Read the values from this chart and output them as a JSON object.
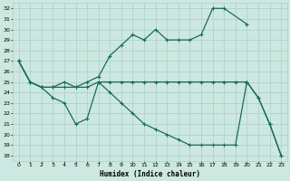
{
  "xlabel": "Humidex (Indice chaleur)",
  "bg_color": "#cce8e0",
  "grid_color": "#aacfc8",
  "line_color": "#1a6b5a",
  "xlim": [
    -0.5,
    23.5
  ],
  "ylim": [
    17.5,
    32.5
  ],
  "yticks": [
    18,
    19,
    20,
    21,
    22,
    23,
    24,
    25,
    26,
    27,
    28,
    29,
    30,
    31,
    32
  ],
  "xticks": [
    0,
    1,
    2,
    3,
    4,
    5,
    6,
    7,
    8,
    9,
    10,
    11,
    12,
    13,
    14,
    15,
    16,
    17,
    18,
    19,
    20,
    21,
    22,
    23
  ],
  "line1_x": [
    0,
    1,
    2,
    3,
    4,
    5,
    6,
    7,
    8,
    9,
    10,
    11,
    12,
    13,
    14,
    15,
    16,
    17,
    18,
    20
  ],
  "line1_y": [
    27,
    25,
    24.5,
    24.5,
    25,
    24.5,
    25,
    25.5,
    27.5,
    28.5,
    29.5,
    29,
    30,
    29,
    29,
    29,
    29.5,
    32,
    32,
    30.5
  ],
  "line2_x": [
    0,
    1,
    2,
    3,
    4,
    5,
    6,
    7,
    8,
    9,
    10,
    11,
    12,
    13,
    14,
    15,
    16,
    17,
    18,
    19,
    20,
    21,
    22,
    23
  ],
  "line2_y": [
    27,
    25,
    24.5,
    23.5,
    23,
    21,
    21.5,
    25,
    24,
    23,
    22,
    21,
    20.5,
    20,
    19.5,
    19,
    19,
    19,
    19,
    19,
    25,
    23.5,
    21,
    18
  ],
  "line3_x": [
    0,
    1,
    2,
    3,
    4,
    5,
    6,
    7,
    8,
    9,
    10,
    11,
    12,
    13,
    14,
    15,
    16,
    17,
    18,
    19,
    20,
    21,
    22,
    23
  ],
  "line3_y": [
    27,
    25,
    24.5,
    24.5,
    24.5,
    24.5,
    24.5,
    25,
    25,
    25,
    25,
    25,
    25,
    25,
    25,
    25,
    25,
    25,
    25,
    25,
    25,
    23.5,
    21,
    18
  ]
}
